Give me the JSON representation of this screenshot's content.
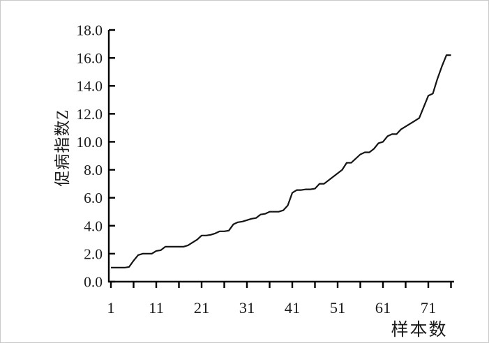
{
  "chart_data": {
    "type": "line",
    "title": "",
    "xlabel": "样本数",
    "ylabel": "促病指数Z",
    "x_start": 1,
    "x_step": 1,
    "n_points": 76,
    "values": [
      1.0,
      1.0,
      1.0,
      1.0,
      1.05,
      1.5,
      1.9,
      2.0,
      2.0,
      2.0,
      2.2,
      2.25,
      2.5,
      2.5,
      2.5,
      2.5,
      2.5,
      2.6,
      2.8,
      3.0,
      3.3,
      3.3,
      3.35,
      3.45,
      3.6,
      3.6,
      3.65,
      4.1,
      4.25,
      4.3,
      4.4,
      4.5,
      4.55,
      4.8,
      4.85,
      5.0,
      5.0,
      5.0,
      5.1,
      5.45,
      6.35,
      6.55,
      6.55,
      6.6,
      6.6,
      6.65,
      7.0,
      7.0,
      7.25,
      7.5,
      7.75,
      8.0,
      8.5,
      8.5,
      8.8,
      9.1,
      9.25,
      9.25,
      9.5,
      9.9,
      10.0,
      10.4,
      10.55,
      10.55,
      10.9,
      11.1,
      11.3,
      11.5,
      11.7,
      12.5,
      13.3,
      13.45,
      14.5,
      15.4,
      16.2,
      16.2
    ],
    "ylim": [
      0,
      18
    ],
    "y_tick_step": 2,
    "y_tick_labels": [
      "0.0",
      "2.0",
      "4.0",
      "6.0",
      "8.0",
      "10.0",
      "12.0",
      "14.0",
      "16.0",
      "18.0"
    ],
    "x_tick_positions": [
      1,
      11,
      21,
      31,
      41,
      51,
      61,
      71
    ],
    "x_tick_labels": [
      "1",
      "11",
      "21",
      "31",
      "41",
      "51",
      "61",
      "71"
    ],
    "x_minor_tick_step": 5,
    "grid": false,
    "legend": "none",
    "line_color": "#141414",
    "axis_color": "#000000",
    "text_color": "#1c1c1c"
  }
}
